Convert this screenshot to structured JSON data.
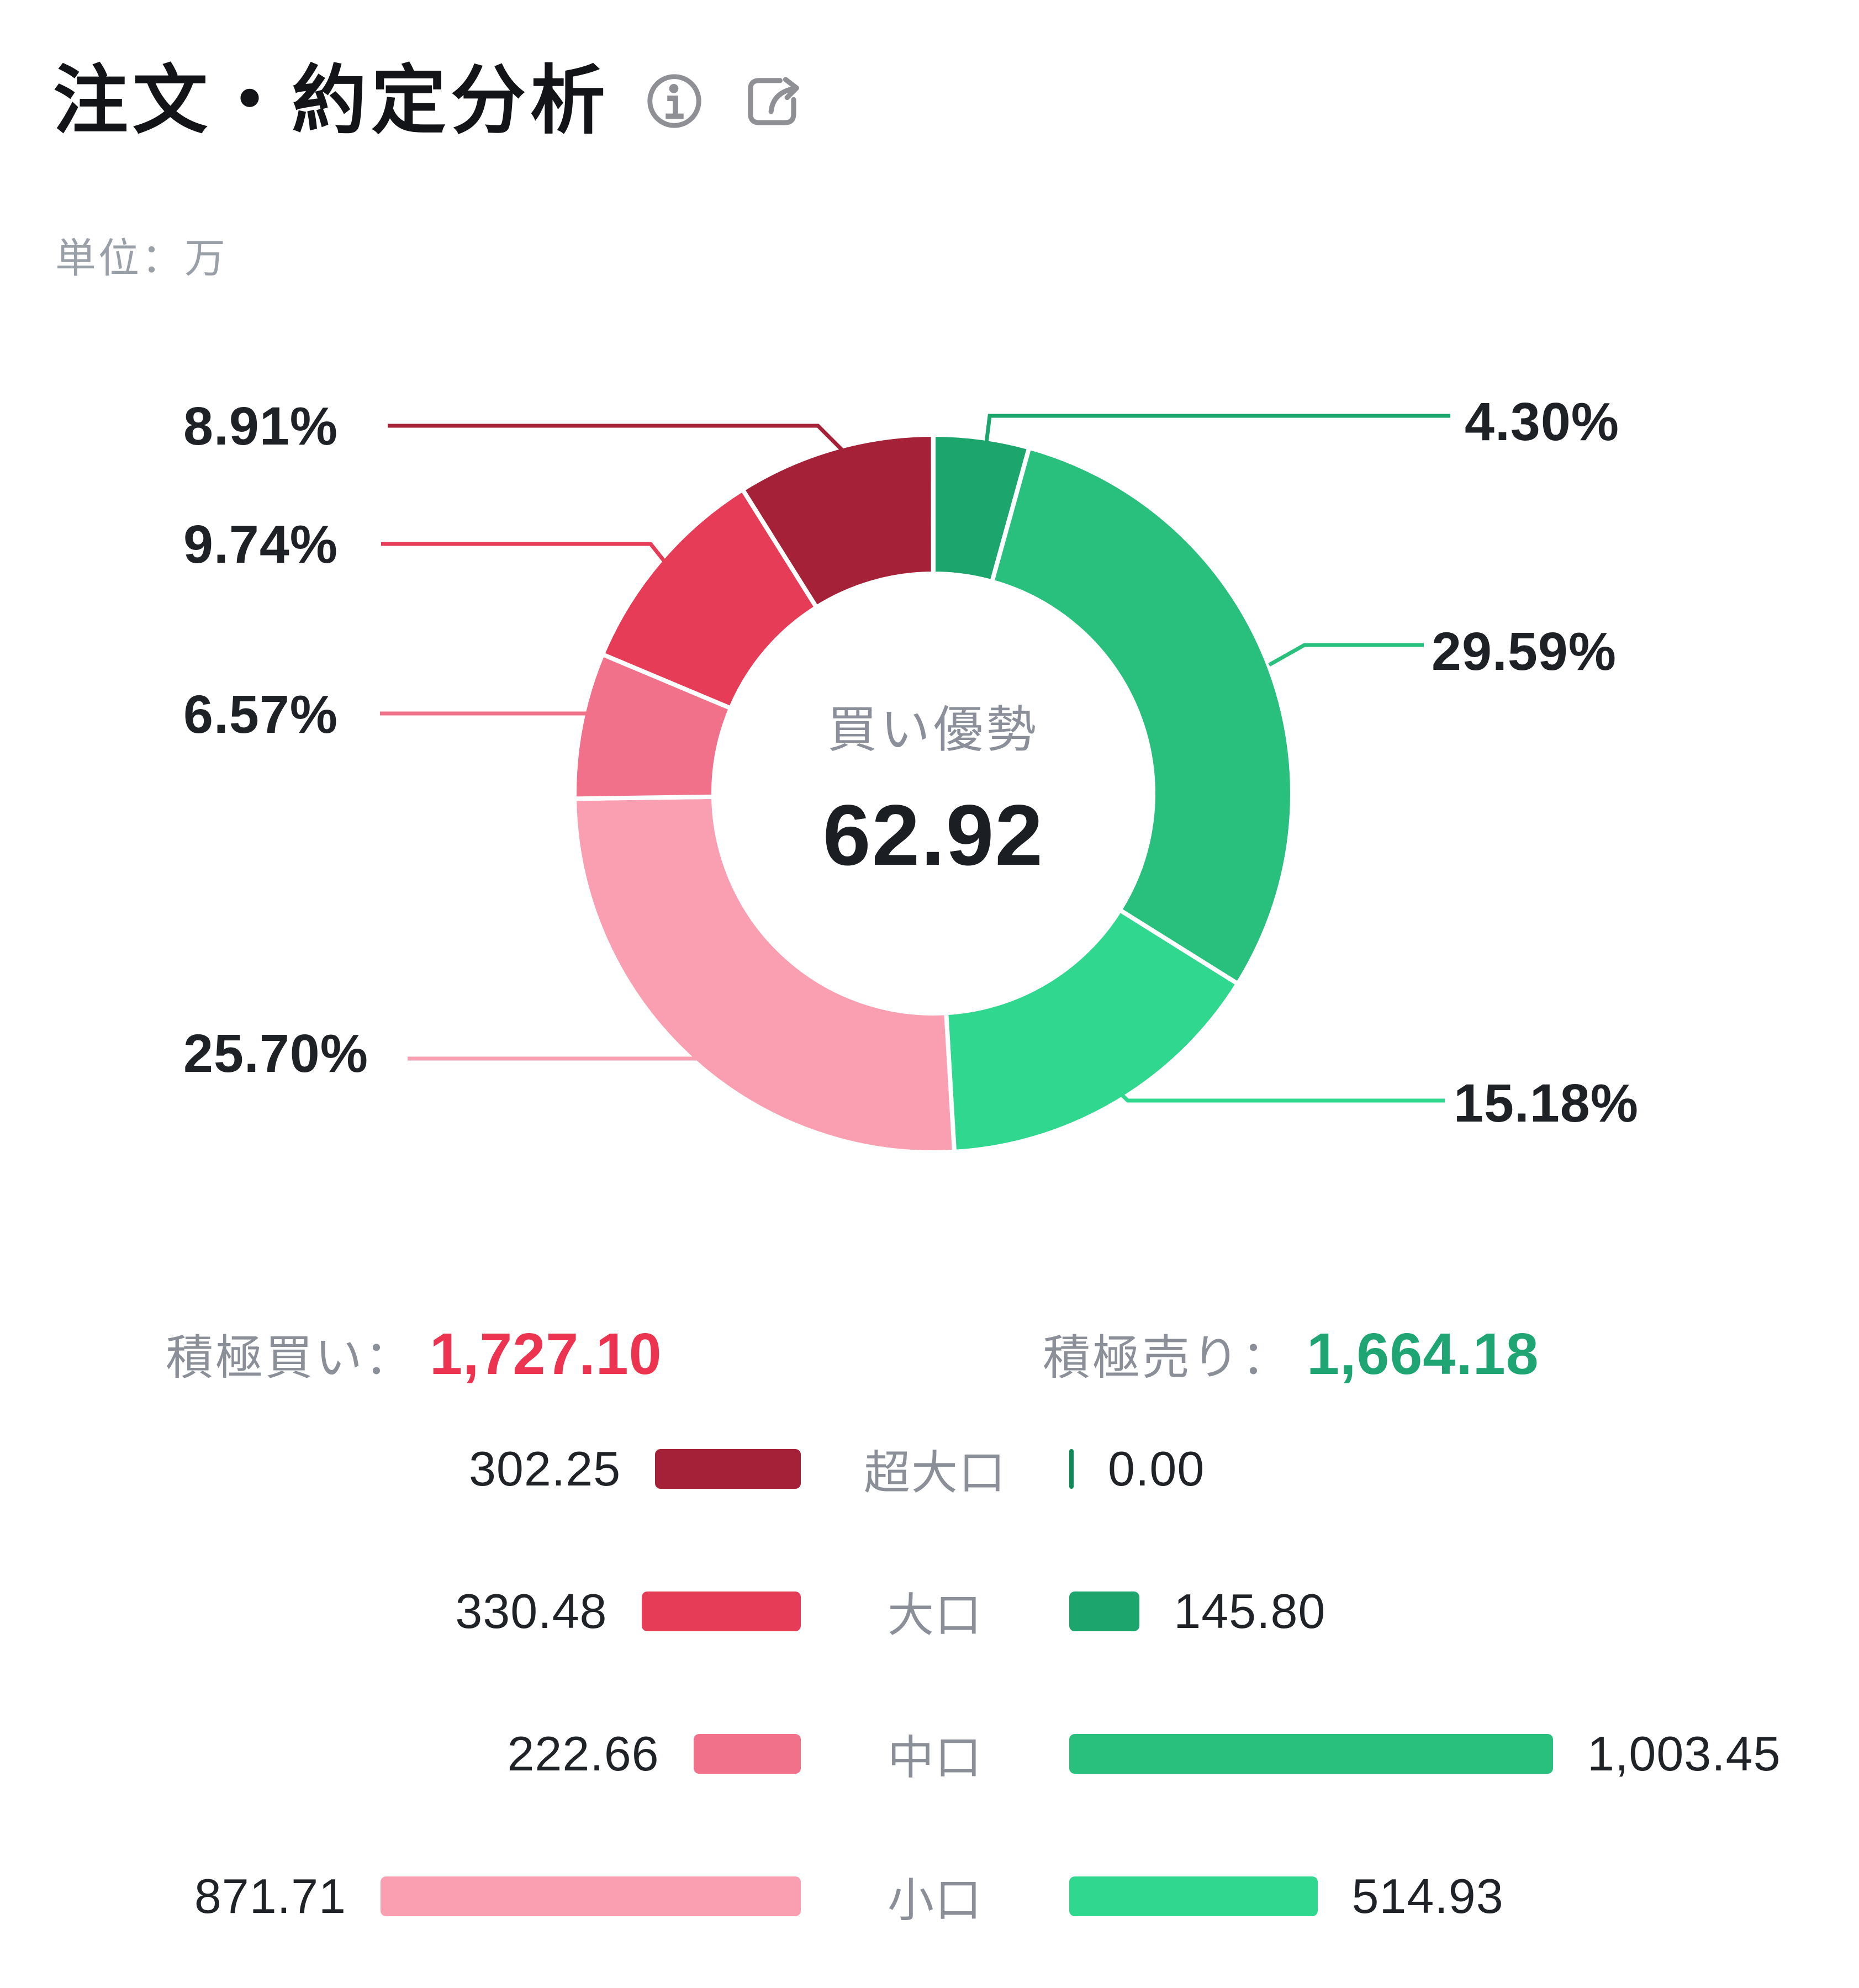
{
  "header": {
    "title": "注文・約定分析",
    "info_icon": "info-circle",
    "share_icon": "share"
  },
  "unit_label": "単位：万",
  "donut_center": {
    "caption": "買い優勢",
    "value": "62.92"
  },
  "summary": {
    "buy_label": "積極買い：",
    "buy_value": "1,727.10",
    "buy_color": "#ec3450",
    "sell_label": "積極売り：",
    "sell_value": "1,664.18",
    "sell_color": "#1fa573"
  },
  "chart_data": {
    "type": "pie",
    "subtype": "donut",
    "title": "注文・約定分析",
    "unit": "万",
    "center_caption": "買い優勢",
    "center_value": 62.92,
    "start_angle_deg_from_12_clockwise": 0,
    "legend_position": "bottom",
    "segments": [
      {
        "name": "大口売り",
        "label": "4.30%",
        "pct": 4.3,
        "value": 145.8,
        "color": "#1ca56c"
      },
      {
        "name": "中口売り",
        "label": "29.59%",
        "pct": 29.59,
        "value": 1003.45,
        "color": "#29bf7d"
      },
      {
        "name": "小口売り",
        "label": "15.18%",
        "pct": 15.18,
        "value": 514.93,
        "color": "#30d78e"
      },
      {
        "name": "小口買い",
        "label": "25.70%",
        "pct": 25.7,
        "value": 871.71,
        "color": "#f99fb1"
      },
      {
        "name": "中口買い",
        "label": "6.57%",
        "pct": 6.57,
        "value": 222.66,
        "color": "#f2718a"
      },
      {
        "name": "大口買い",
        "label": "9.74%",
        "pct": 9.74,
        "value": 330.48,
        "color": "#e73c58"
      },
      {
        "name": "超大口買い",
        "label": "8.91%",
        "pct": 8.91,
        "value": 302.25,
        "color": "#a42137"
      }
    ],
    "totals": {
      "積極買い": 1727.1,
      "積極売り": 1664.18
    }
  },
  "legend": {
    "rows": [
      {
        "category": "超大口",
        "buy_value": "302.25",
        "buy": 302.25,
        "buy_color": "#a42137",
        "sell_value": "0.00",
        "sell": 0.0,
        "sell_color": "#0e8a58"
      },
      {
        "category": "大口",
        "buy_value": "330.48",
        "buy": 330.48,
        "buy_color": "#e73c58",
        "sell_value": "145.80",
        "sell": 145.8,
        "sell_color": "#1ca56c"
      },
      {
        "category": "中口",
        "buy_value": "222.66",
        "buy": 222.66,
        "buy_color": "#f2718a",
        "sell_value": "1,003.45",
        "sell": 1003.45,
        "sell_color": "#29bf7d"
      },
      {
        "category": "小口",
        "buy_value": "871.71",
        "buy": 871.71,
        "buy_color": "#f99fb1",
        "sell_value": "514.93",
        "sell": 514.93,
        "sell_color": "#30d78e"
      }
    ]
  }
}
